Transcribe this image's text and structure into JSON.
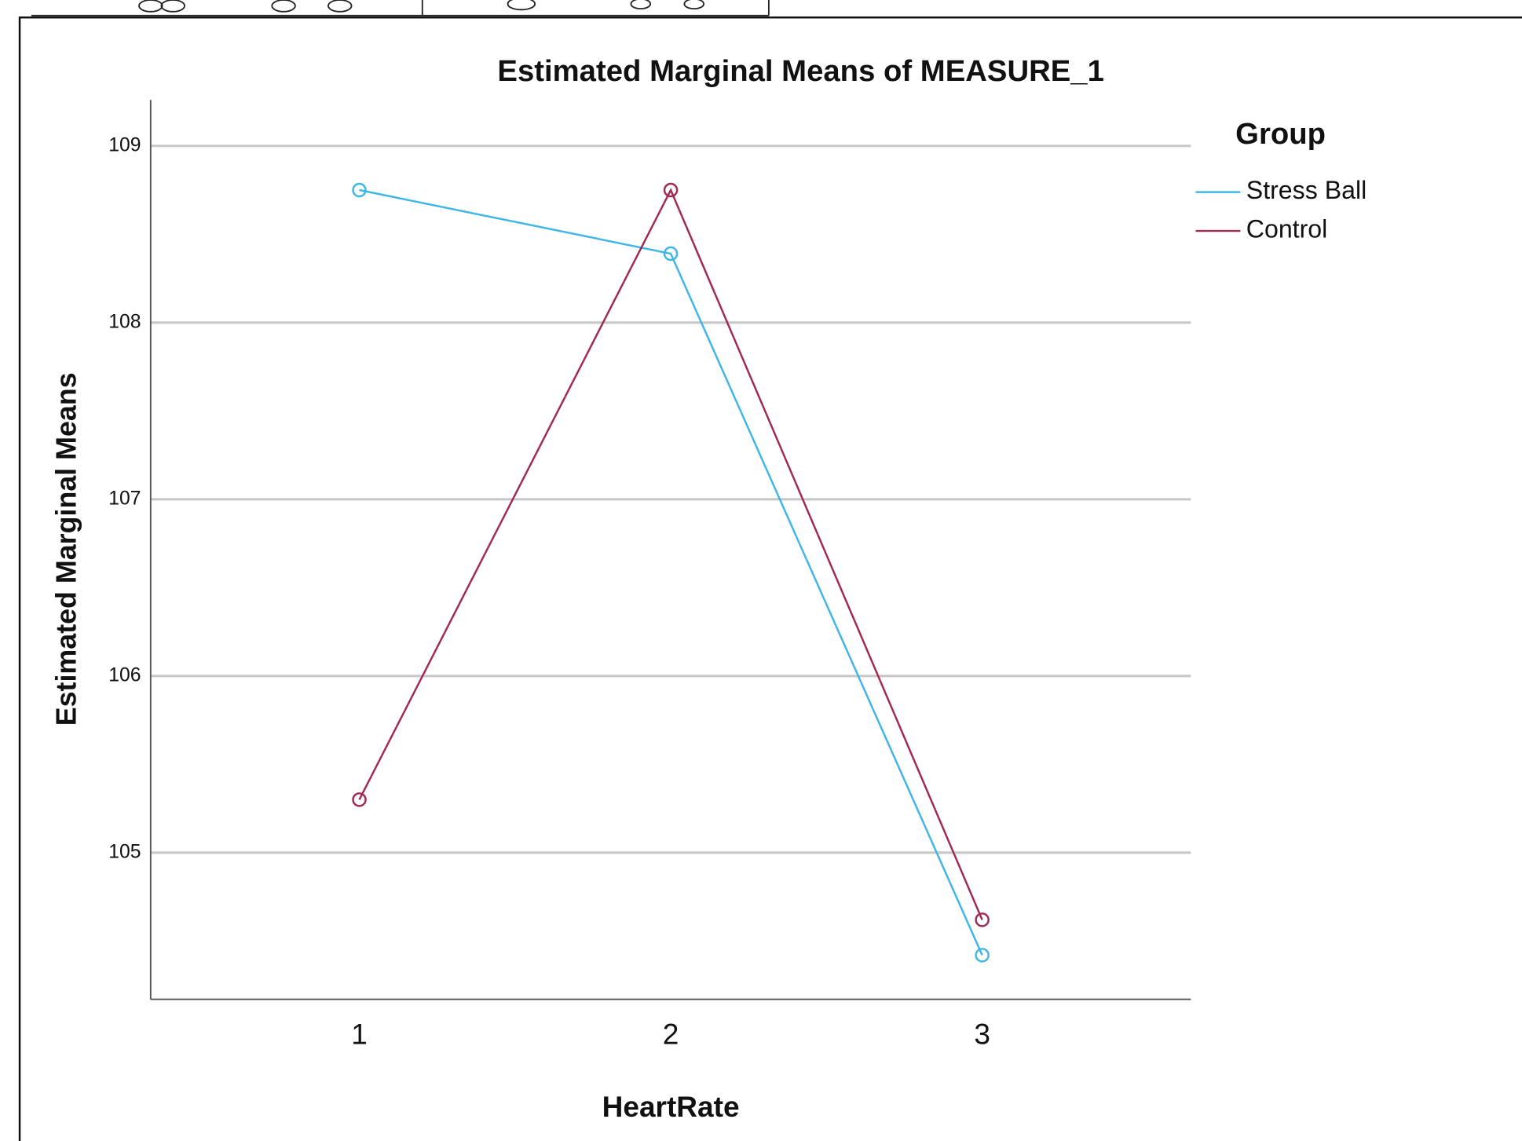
{
  "chart_data": {
    "type": "line",
    "title": "Estimated Marginal Means of MEASURE_1",
    "x_label": "HeartRate",
    "y_label": "Estimated Marginal Means",
    "legend_title": "Group",
    "legend": "right",
    "grid": true,
    "markers": "circle",
    "x": [
      1,
      2,
      3
    ],
    "xlim": [
      0.33,
      3.67
    ],
    "xticks": [
      1,
      2,
      3
    ],
    "ylim": [
      104.17,
      109.26
    ],
    "yticks": [
      105,
      106,
      107,
      108,
      109
    ],
    "series": [
      {
        "name": "Stress Ball",
        "color": "#3fb6e8",
        "values": [
          108.75,
          108.39,
          104.42
        ]
      },
      {
        "name": "Control",
        "color": "#a12a55",
        "values": [
          105.3,
          108.75,
          104.62
        ]
      }
    ]
  }
}
